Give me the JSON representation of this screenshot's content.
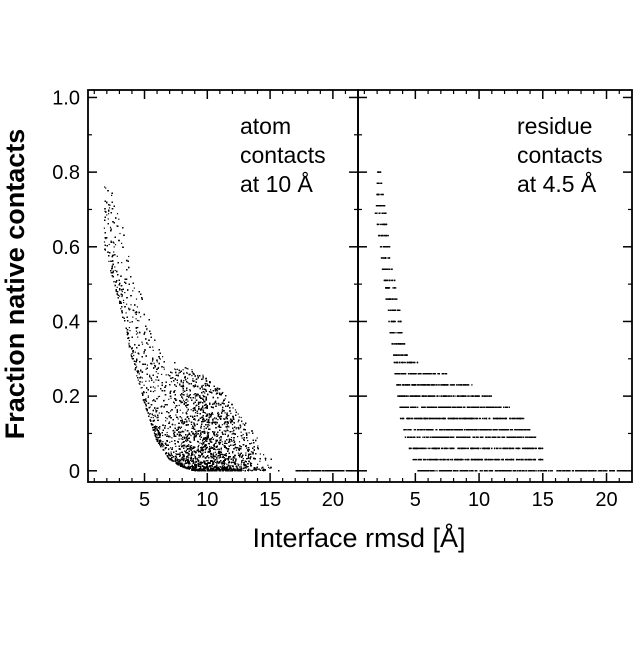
{
  "chart_data": [
    {
      "type": "scatter",
      "panel_label": [
        "atom",
        "contacts",
        "at 10 Å"
      ],
      "xlim": [
        0.5,
        22
      ],
      "ylim": [
        -0.03,
        1.02
      ],
      "x_ticks": [
        5,
        10,
        15,
        20
      ],
      "y_ticks": [
        0,
        0.2,
        0.4,
        0.6,
        0.8,
        1.0
      ],
      "x_tick_labels": [
        "5",
        "10",
        "15",
        "20"
      ],
      "y_tick_labels": [
        "0",
        "0.2",
        "0.4",
        "0.6",
        "0.8",
        "1.0"
      ],
      "color": "#000000",
      "envelope": [
        {
          "x": 1.8,
          "y_max": 0.81,
          "y_min": 0.6
        },
        {
          "x": 3.0,
          "y_max": 0.7,
          "y_min": 0.45
        },
        {
          "x": 3.5,
          "y_max": 0.62,
          "y_min": 0.38
        },
        {
          "x": 4.0,
          "y_max": 0.55,
          "y_min": 0.3
        },
        {
          "x": 5.0,
          "y_max": 0.45,
          "y_min": 0.18
        },
        {
          "x": 6.0,
          "y_max": 0.33,
          "y_min": 0.08
        },
        {
          "x": 7.0,
          "y_max": 0.3,
          "y_min": 0.03
        },
        {
          "x": 8.0,
          "y_max": 0.28,
          "y_min": 0.01
        },
        {
          "x": 9.0,
          "y_max": 0.27,
          "y_min": 0.0
        },
        {
          "x": 10.0,
          "y_max": 0.25,
          "y_min": 0.0
        },
        {
          "x": 11.0,
          "y_max": 0.22,
          "y_min": 0.0
        },
        {
          "x": 12.0,
          "y_max": 0.18,
          "y_min": 0.0
        },
        {
          "x": 13.0,
          "y_max": 0.13,
          "y_min": 0.0
        },
        {
          "x": 14.0,
          "y_max": 0.09,
          "y_min": 0.0
        },
        {
          "x": 15.0,
          "y_max": 0.05,
          "y_min": 0.0
        },
        {
          "x": 16.0,
          "y_max": 0.02,
          "y_min": 0.0
        },
        {
          "x": 17.0,
          "y_max": 0.0,
          "y_min": 0.0
        },
        {
          "x": 21.5,
          "y_max": 0.0,
          "y_min": 0.0
        }
      ]
    },
    {
      "type": "scatter",
      "panel_label": [
        "residue",
        "contacts",
        "at 4.5 Å"
      ],
      "xlim": [
        0.5,
        22
      ],
      "ylim": [
        -0.03,
        1.02
      ],
      "x_ticks": [
        5,
        10,
        15,
        20
      ],
      "y_ticks": [
        0,
        0.2,
        0.4,
        0.6,
        0.8,
        1.0
      ],
      "x_tick_labels": [
        "5",
        "10",
        "15",
        "20"
      ],
      "color": "#000000",
      "levels": [
        {
          "y": 0.8,
          "x_min": 2.0,
          "x_max": 2.3
        },
        {
          "y": 0.77,
          "x_min": 2.0,
          "x_max": 2.4
        },
        {
          "y": 0.74,
          "x_min": 1.9,
          "x_max": 2.5
        },
        {
          "y": 0.71,
          "x_min": 1.9,
          "x_max": 2.6
        },
        {
          "y": 0.69,
          "x_min": 1.8,
          "x_max": 2.7
        },
        {
          "y": 0.66,
          "x_min": 2.0,
          "x_max": 2.8
        },
        {
          "y": 0.63,
          "x_min": 2.1,
          "x_max": 2.9
        },
        {
          "y": 0.6,
          "x_min": 2.2,
          "x_max": 3.0
        },
        {
          "y": 0.57,
          "x_min": 2.3,
          "x_max": 3.0
        },
        {
          "y": 0.54,
          "x_min": 2.4,
          "x_max": 3.2
        },
        {
          "y": 0.51,
          "x_min": 2.5,
          "x_max": 3.4
        },
        {
          "y": 0.49,
          "x_min": 2.6,
          "x_max": 3.5
        },
        {
          "y": 0.46,
          "x_min": 2.7,
          "x_max": 3.6
        },
        {
          "y": 0.43,
          "x_min": 2.8,
          "x_max": 3.8
        },
        {
          "y": 0.4,
          "x_min": 2.9,
          "x_max": 3.9
        },
        {
          "y": 0.37,
          "x_min": 3.0,
          "x_max": 4.0
        },
        {
          "y": 0.34,
          "x_min": 3.1,
          "x_max": 4.2
        },
        {
          "y": 0.31,
          "x_min": 3.2,
          "x_max": 4.5
        },
        {
          "y": 0.29,
          "x_min": 3.3,
          "x_max": 5.2
        },
        {
          "y": 0.26,
          "x_min": 3.4,
          "x_max": 7.5
        },
        {
          "y": 0.23,
          "x_min": 3.5,
          "x_max": 9.5
        },
        {
          "y": 0.2,
          "x_min": 3.6,
          "x_max": 11.0
        },
        {
          "y": 0.17,
          "x_min": 3.7,
          "x_max": 12.5
        },
        {
          "y": 0.14,
          "x_min": 3.8,
          "x_max": 13.5
        },
        {
          "y": 0.11,
          "x_min": 4.0,
          "x_max": 14.0
        },
        {
          "y": 0.09,
          "x_min": 4.2,
          "x_max": 14.5
        },
        {
          "y": 0.06,
          "x_min": 4.5,
          "x_max": 15.0
        },
        {
          "y": 0.03,
          "x_min": 4.8,
          "x_max": 15.0
        },
        {
          "y": 0.0,
          "x_min": 5.2,
          "x_max": 21.5
        }
      ]
    }
  ],
  "axes": {
    "ylabel": "Fraction native contacts",
    "xlabel": "Interface rmsd [Å]"
  }
}
